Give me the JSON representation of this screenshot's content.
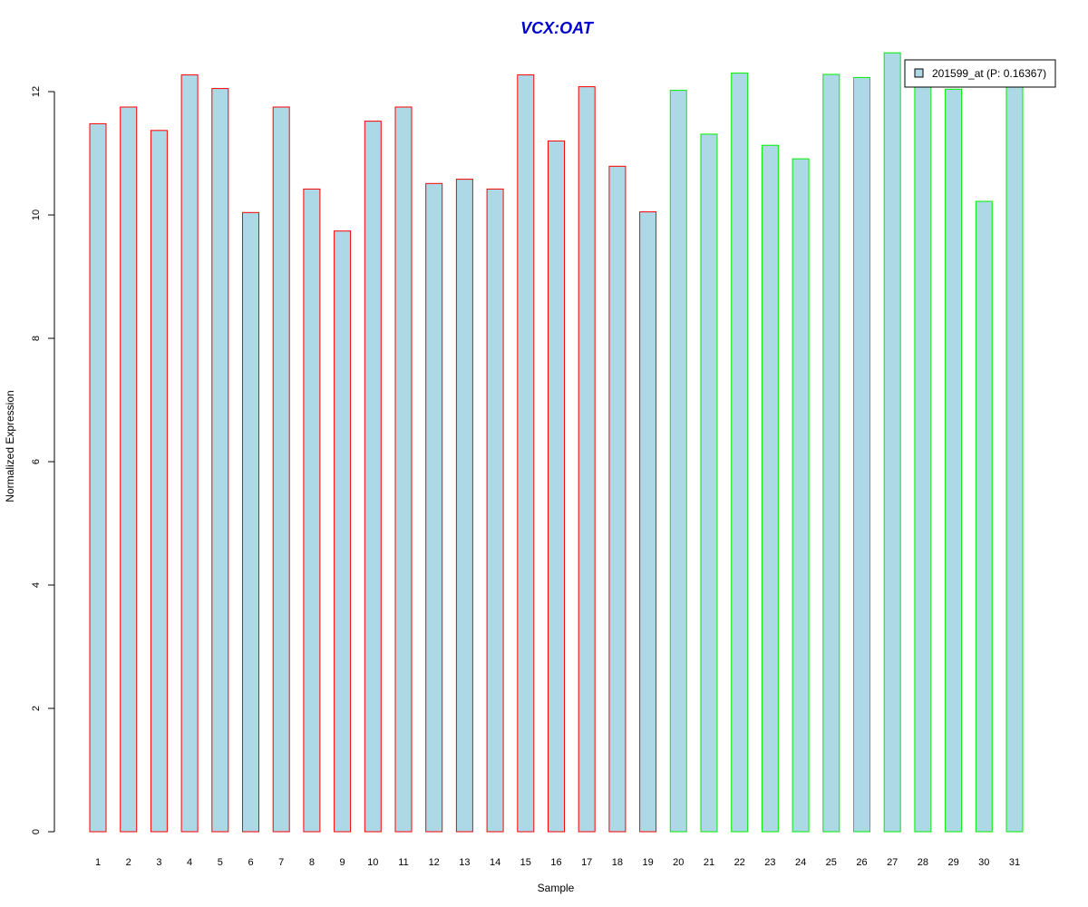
{
  "chart_data": {
    "type": "bar",
    "title": "VCX:OAT",
    "xlabel": "Sample",
    "ylabel": "Normalized Expression",
    "ylim": [
      0,
      12.6
    ],
    "yticks": [
      0,
      2,
      4,
      6,
      8,
      10,
      12
    ],
    "categories": [
      "1",
      "2",
      "3",
      "4",
      "5",
      "6",
      "7",
      "8",
      "9",
      "10",
      "11",
      "12",
      "13",
      "14",
      "15",
      "16",
      "17",
      "18",
      "19",
      "20",
      "21",
      "22",
      "23",
      "24",
      "25",
      "26",
      "27",
      "28",
      "29",
      "30",
      "31"
    ],
    "values": [
      11.48,
      11.75,
      11.37,
      12.27,
      12.05,
      10.04,
      11.75,
      10.42,
      9.74,
      11.52,
      11.75,
      10.51,
      10.58,
      10.42,
      12.27,
      11.2,
      12.08,
      10.79,
      10.05,
      12.02,
      11.31,
      12.3,
      11.13,
      10.91,
      12.28,
      12.23,
      12.63,
      12.27,
      12.04,
      10.22,
      12.28
    ],
    "groups": [
      "red",
      "red",
      "red",
      "red",
      "red",
      "red",
      "red",
      "red",
      "red",
      "red",
      "red",
      "red",
      "red",
      "red",
      "red",
      "red",
      "red",
      "red",
      "red",
      "green",
      "green",
      "green",
      "green",
      "green",
      "green",
      "green",
      "green",
      "green",
      "green",
      "green",
      "green"
    ],
    "grid": false,
    "legend": {
      "placement": "top-right",
      "entries": [
        {
          "label": "201599_at (P: 0.16367)",
          "fill": "#add8e6"
        }
      ]
    },
    "colors": {
      "bar_fill": "#add8e6",
      "border_red": "#ff0000",
      "border_green": "#00ee00",
      "title": "#0000cd"
    }
  }
}
